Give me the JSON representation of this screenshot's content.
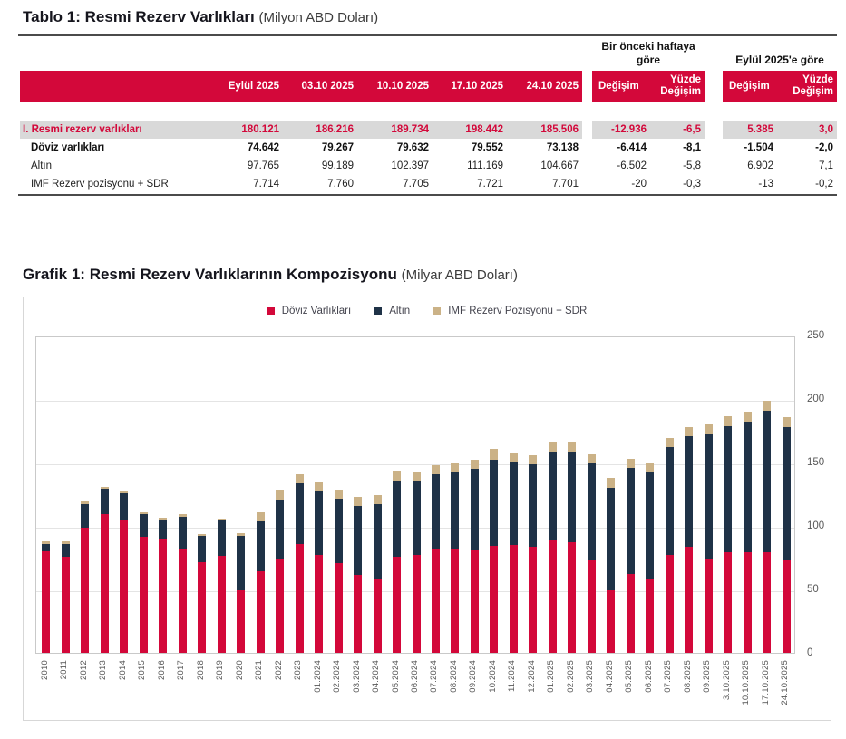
{
  "table": {
    "title": "Tablo 1: Resmi Rezerv Varlıkları",
    "title_unit": "(Milyon ABD Doları)",
    "group_week": "Bir önceki haftaya göre",
    "group_sep": "Eylül 2025'e göre",
    "columns": [
      "Eylül 2025",
      "03.10 2025",
      "10.10 2025",
      "17.10 2025",
      "24.10 2025"
    ],
    "change_label": "Değişim",
    "pct_change_label": "Yüzde Değişim",
    "rows": [
      {
        "label": "I. Resmi rezerv varlıkları",
        "values": [
          "180.121",
          "186.216",
          "189.734",
          "198.442",
          "185.506"
        ],
        "week_change": [
          "-12.936",
          "-6,5"
        ],
        "sep_change": [
          "5.385",
          "3,0"
        ]
      },
      {
        "label": "Döviz varlıkları",
        "values": [
          "74.642",
          "79.267",
          "79.632",
          "79.552",
          "73.138"
        ],
        "week_change": [
          "-6.414",
          "-8,1"
        ],
        "sep_change": [
          "-1.504",
          "-2,0"
        ]
      },
      {
        "label": "Altın",
        "values": [
          "97.765",
          "99.189",
          "102.397",
          "111.169",
          "104.667"
        ],
        "week_change": [
          "-6.502",
          "-5,8"
        ],
        "sep_change": [
          "6.902",
          "7,1"
        ]
      },
      {
        "label": "IMF Rezerv pozisyonu + SDR",
        "values": [
          "7.714",
          "7.760",
          "7.705",
          "7.721",
          "7.701"
        ],
        "week_change": [
          "-20",
          "-0,3"
        ],
        "sep_change": [
          "-13",
          "-0,2"
        ]
      }
    ]
  },
  "chart": {
    "title": "Grafik 1: Resmi Rezerv Varlıklarının Kompozisyonu",
    "title_unit": "(Milyar ABD Doları)"
  },
  "chart_data": {
    "type": "bar",
    "stacked": true,
    "title": "Grafik 1: Resmi Rezerv Varlıklarının Kompozisyonu (Milyar ABD Doları)",
    "ylim": [
      0,
      250
    ],
    "yticks": [
      0,
      50,
      100,
      150,
      200,
      250
    ],
    "grid": true,
    "legend_position": "top",
    "categories": [
      "2010",
      "2011",
      "2012",
      "2013",
      "2014",
      "2015",
      "2016",
      "2017",
      "2018",
      "2019",
      "2020",
      "2021",
      "2022",
      "2023",
      "01.2024",
      "02.2024",
      "03.2024",
      "04.2024",
      "05.2024",
      "06.2024",
      "07.2024",
      "08.2024",
      "09.2024",
      "10.2024",
      "11.2024",
      "12.2024",
      "01.2025",
      "02.2025",
      "03.2025",
      "04.2025",
      "05.2025",
      "06.2025",
      "07.2025",
      "08.2025",
      "09.2025",
      "3.10.2025",
      "10.10.2025",
      "17.10.2025",
      "24.10.2025"
    ],
    "series": [
      {
        "name": "Döviz Varlıkları",
        "color": "#d3083a",
        "values": [
          80,
          76,
          98.5,
          109.5,
          105,
          91.5,
          90,
          82,
          71.5,
          76.5,
          49,
          64,
          74.5,
          85.5,
          77.5,
          71,
          61.5,
          58.5,
          76,
          77.5,
          82.5,
          81.5,
          80.5,
          84.5,
          85,
          83.5,
          89.5,
          87,
          73,
          49,
          62.5,
          58.5,
          77.5,
          83.5,
          74.6,
          79.3,
          79.6,
          79.6,
          73.1
        ]
      },
      {
        "name": "Altın",
        "color": "#1f3247",
        "values": [
          6,
          10,
          18.5,
          20,
          20.5,
          17.5,
          15,
          25.5,
          20.5,
          27.5,
          43,
          39.5,
          46.5,
          48,
          49.5,
          50.5,
          54.5,
          58.5,
          60,
          58,
          58.5,
          61,
          64.5,
          68,
          65,
          65,
          69,
          71,
          76,
          81,
          83,
          84,
          84.5,
          87.5,
          97.8,
          99.2,
          102.4,
          111.2,
          104.7
        ]
      },
      {
        "name": "IMF Rezerv Pozisyonu + SDR",
        "color": "#cbb287",
        "values": [
          2,
          2,
          2,
          1.5,
          2,
          1.5,
          1.5,
          1.5,
          1.5,
          2,
          2,
          7.5,
          7.8,
          7.4,
          7.5,
          7,
          7,
          7,
          7.3,
          7,
          7,
          7,
          7,
          7.9,
          7.4,
          7.2,
          7.5,
          7.8,
          7.6,
          8,
          7.1,
          7.1,
          7.1,
          7.2,
          7.7,
          7.8,
          7.7,
          7.7,
          7.7
        ]
      }
    ]
  }
}
